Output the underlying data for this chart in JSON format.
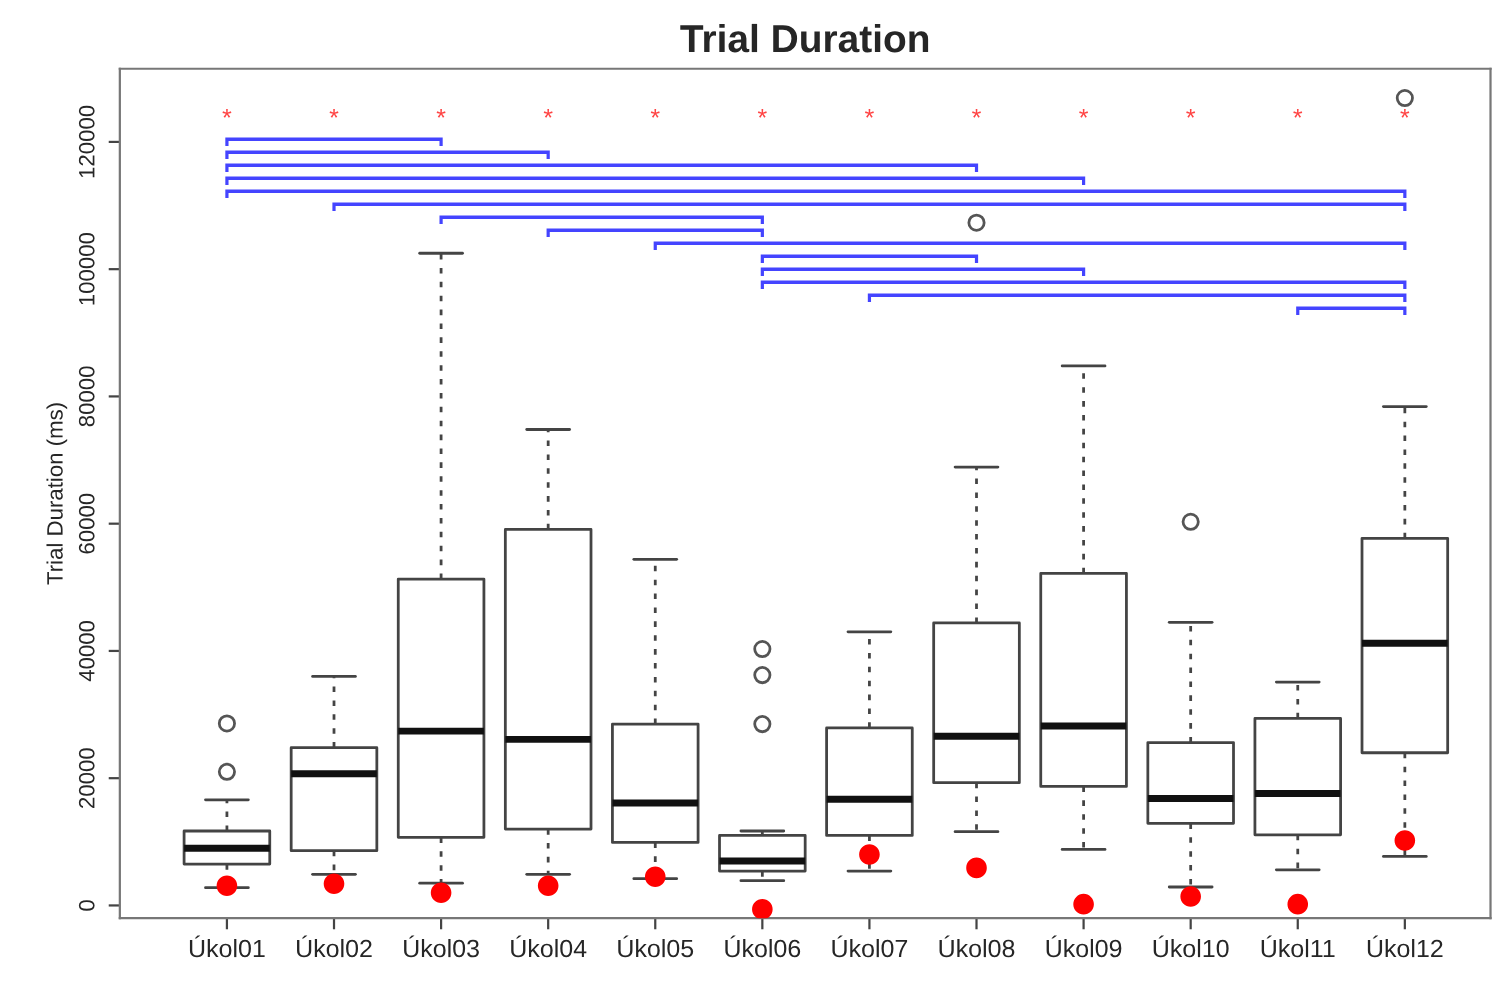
{
  "chart_data": {
    "type": "box",
    "title": "Trial Duration",
    "ylabel": "Trial Duration (ms)",
    "categories": [
      "Úkol01",
      "Úkol02",
      "Úkol03",
      "Úkol04",
      "Úkol05",
      "Úkol06",
      "Úkol07",
      "Úkol08",
      "Úkol09",
      "Úkol10",
      "Úkol11",
      "Úkol12"
    ],
    "boxes": [
      {
        "low": 2800,
        "q1": 6500,
        "median": 9000,
        "q3": 11700,
        "high": 16600,
        "outliers": [
          21000,
          28600
        ]
      },
      {
        "low": 4900,
        "q1": 8600,
        "median": 20700,
        "q3": 24800,
        "high": 36000
      },
      {
        "low": 3500,
        "q1": 10700,
        "median": 27400,
        "q3": 51300,
        "high": 102500
      },
      {
        "low": 4900,
        "q1": 12000,
        "median": 26100,
        "q3": 59100,
        "high": 74800
      },
      {
        "low": 4200,
        "q1": 9900,
        "median": 16100,
        "q3": 28500,
        "high": 54400
      },
      {
        "low": 3900,
        "q1": 5400,
        "median": 7000,
        "q3": 11000,
        "high": 11700,
        "outliers": [
          28500,
          36200,
          40300
        ]
      },
      {
        "low": 5400,
        "q1": 11000,
        "median": 16700,
        "q3": 27900,
        "high": 43000
      },
      {
        "low": 11600,
        "q1": 19300,
        "median": 26600,
        "q3": 44400,
        "high": 68900,
        "outliers": [
          107300
        ]
      },
      {
        "low": 8800,
        "q1": 18700,
        "median": 28200,
        "q3": 52200,
        "high": 84800
      },
      {
        "low": 2900,
        "q1": 12900,
        "median": 16800,
        "q3": 25600,
        "high": 44500,
        "outliers": [
          60300
        ]
      },
      {
        "low": 5600,
        "q1": 11100,
        "median": 17600,
        "q3": 29400,
        "high": 35100
      },
      {
        "low": 7700,
        "q1": 24000,
        "median": 41200,
        "q3": 57700,
        "high": 78400,
        "outliers": [
          126900
        ]
      }
    ],
    "series": [
      {
        "type": "scatter",
        "color": "#ff0000",
        "x": [
          "Úkol01",
          "Úkol02",
          "Úkol03",
          "Úkol04",
          "Úkol05",
          "Úkol06",
          "Úkol07",
          "Úkol08",
          "Úkol09",
          "Úkol10",
          "Úkol11",
          "Úkol12"
        ],
        "values": [
          3100,
          3400,
          2000,
          3100,
          4500,
          -600,
          8000,
          5900,
          200,
          1400,
          200,
          10200
        ]
      }
    ],
    "annotations": [
      "*",
      "*",
      "*",
      "*",
      "*",
      "*",
      "*",
      "*",
      "*",
      "*",
      "*",
      "*"
    ],
    "ylim": [
      -2000,
      131500
    ],
    "yticks": [
      0,
      20000,
      40000,
      60000,
      80000,
      100000,
      120000
    ],
    "marker": "circle",
    "grid": false,
    "legend": false
  }
}
